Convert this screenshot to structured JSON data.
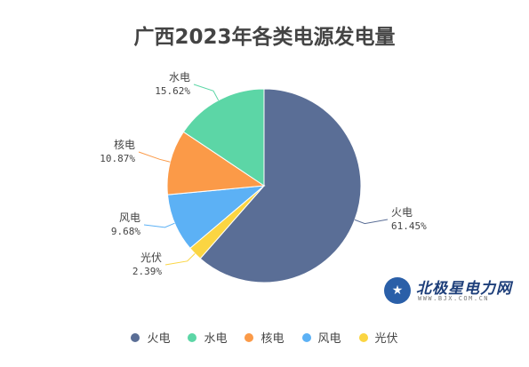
{
  "chart_data": {
    "type": "pie",
    "title": "广西2023年各类电源发电量",
    "slices": [
      {
        "name": "火电",
        "value": 61.45,
        "label": "61.45%",
        "color": "#5a6e96"
      },
      {
        "name": "光伏",
        "value": 2.39,
        "label": "2.39%",
        "color": "#fbd542"
      },
      {
        "name": "风电",
        "value": 9.68,
        "label": "9.68%",
        "color": "#5cb1f5"
      },
      {
        "name": "核电",
        "value": 10.87,
        "label": "10.87%",
        "color": "#fb9a48"
      },
      {
        "name": "水电",
        "value": 15.62,
        "label": "15.62%",
        "color": "#5cd6a6"
      }
    ],
    "legend": {
      "placement": "bottom",
      "items": [
        {
          "name": "火电",
          "color": "#5a6e96"
        },
        {
          "name": "水电",
          "color": "#5cd6a6"
        },
        {
          "name": "核电",
          "color": "#fb9a48"
        },
        {
          "name": "风电",
          "color": "#5cb1f5"
        },
        {
          "name": "光伏",
          "color": "#fbd542"
        }
      ]
    }
  },
  "watermark": {
    "name": "北极星电力网",
    "url": "WWW.BJX.COM.CN",
    "icon": "star-icon"
  }
}
